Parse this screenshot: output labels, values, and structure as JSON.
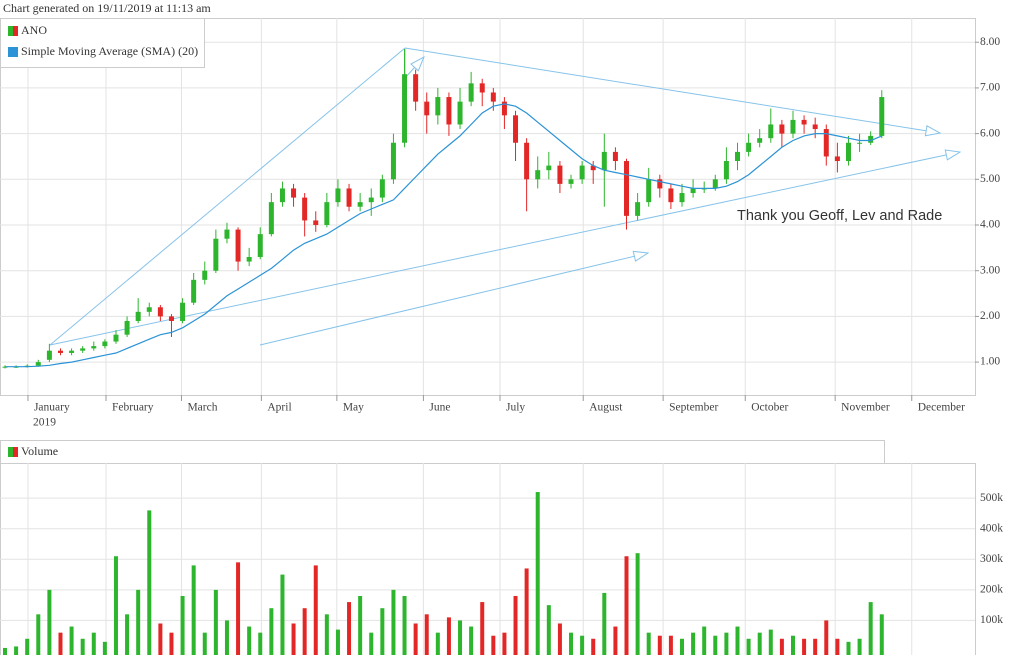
{
  "chart_data": [
    {
      "type": "candlestick",
      "title": "Chart generated on 19/11/2019 at 11:13 am",
      "annotation": "Thank you Geoff, Lev and Rade",
      "year_label": "2019",
      "grid": true,
      "up_color": "#2db52d",
      "down_color": "#e32727",
      "xlim": [
        -0.45,
        87.4
      ],
      "xticks": [
        {
          "value": 2.07,
          "label": "January"
        },
        {
          "value": 9.1,
          "label": "February"
        },
        {
          "value": 15.9,
          "label": "March"
        },
        {
          "value": 23.1,
          "label": "April"
        },
        {
          "value": 29.9,
          "label": "May"
        },
        {
          "value": 37.7,
          "label": "June"
        },
        {
          "value": 44.6,
          "label": "July"
        },
        {
          "value": 52.1,
          "label": "August"
        },
        {
          "value": 59.3,
          "label": "September"
        },
        {
          "value": 66.7,
          "label": "October"
        },
        {
          "value": 74.8,
          "label": "November"
        },
        {
          "value": 81.7,
          "label": "December"
        }
      ],
      "ylim": [
        0.28,
        8.53
      ],
      "yticks": [
        {
          "value": 1,
          "label": "1.00"
        },
        {
          "value": 2,
          "label": "2.00"
        },
        {
          "value": 3,
          "label": "3.00"
        },
        {
          "value": 4,
          "label": "4.00"
        },
        {
          "value": 5,
          "label": "5.00"
        },
        {
          "value": 6,
          "label": "6.00"
        },
        {
          "value": 7,
          "label": "7.00"
        },
        {
          "value": 8,
          "label": "8.00"
        }
      ],
      "series": [
        {
          "name": "ANO",
          "open": [
            0.88,
            0.9,
            0.9,
            0.92,
            1.05,
            1.25,
            1.2,
            1.25,
            1.3,
            1.35,
            1.45,
            1.6,
            1.9,
            2.1,
            2.2,
            2.0,
            1.9,
            2.3,
            2.8,
            3.0,
            3.7,
            3.9,
            3.2,
            3.3,
            3.8,
            4.5,
            4.8,
            4.6,
            4.1,
            4.0,
            4.5,
            4.8,
            4.4,
            4.5,
            4.6,
            5.0,
            5.8,
            7.3,
            6.7,
            6.4,
            6.8,
            6.2,
            6.7,
            7.1,
            6.9,
            6.7,
            6.4,
            5.8,
            5.0,
            5.2,
            5.3,
            4.9,
            5.0,
            5.3,
            5.2,
            5.6,
            5.4,
            4.2,
            4.5,
            5.0,
            4.8,
            4.5,
            4.7,
            4.8,
            4.8,
            5.0,
            5.4,
            5.6,
            5.8,
            5.9,
            6.2,
            6.0,
            6.3,
            6.2,
            6.1,
            5.5,
            5.4,
            5.8,
            5.8,
            5.95
          ],
          "high": [
            0.93,
            0.93,
            0.95,
            1.05,
            1.4,
            1.3,
            1.3,
            1.35,
            1.45,
            1.5,
            1.7,
            2.0,
            2.4,
            2.3,
            2.25,
            2.05,
            2.4,
            2.95,
            3.2,
            3.9,
            4.05,
            3.95,
            3.5,
            3.95,
            4.7,
            4.95,
            4.9,
            4.7,
            4.3,
            4.7,
            5.0,
            4.9,
            4.7,
            4.8,
            5.1,
            6.0,
            7.85,
            7.4,
            6.9,
            7.0,
            6.9,
            7.0,
            7.35,
            7.2,
            7.0,
            6.8,
            6.5,
            5.9,
            5.5,
            5.6,
            5.4,
            5.1,
            5.4,
            5.4,
            6.0,
            5.7,
            5.45,
            4.7,
            5.25,
            5.1,
            4.9,
            4.9,
            5.0,
            4.95,
            5.1,
            5.7,
            5.8,
            6.0,
            6.1,
            6.55,
            6.3,
            6.5,
            6.4,
            6.35,
            6.2,
            5.8,
            5.95,
            6.0,
            6.05,
            6.95
          ],
          "low": [
            0.86,
            0.87,
            0.88,
            0.9,
            1.0,
            1.15,
            1.15,
            1.2,
            1.25,
            1.3,
            1.4,
            1.55,
            1.85,
            2.0,
            1.9,
            1.55,
            1.85,
            2.25,
            2.7,
            2.95,
            3.6,
            3.0,
            3.1,
            3.25,
            3.75,
            4.4,
            4.4,
            3.75,
            3.85,
            3.95,
            4.4,
            4.3,
            4.3,
            4.2,
            4.5,
            4.9,
            5.7,
            6.5,
            6.0,
            6.2,
            5.95,
            6.1,
            6.6,
            6.6,
            6.5,
            6.1,
            5.4,
            4.3,
            4.8,
            5.0,
            4.7,
            4.8,
            4.9,
            4.9,
            4.4,
            5.2,
            3.9,
            4.1,
            4.4,
            4.6,
            4.35,
            4.4,
            4.6,
            4.7,
            4.75,
            4.9,
            5.2,
            5.5,
            5.7,
            5.8,
            5.7,
            5.9,
            6.0,
            5.9,
            5.3,
            5.15,
            5.3,
            5.6,
            5.75,
            5.9
          ],
          "close": [
            0.9,
            0.9,
            0.92,
            1.0,
            1.25,
            1.2,
            1.25,
            1.3,
            1.35,
            1.45,
            1.6,
            1.9,
            2.1,
            2.2,
            2.0,
            1.9,
            2.3,
            2.8,
            3.0,
            3.7,
            3.9,
            3.2,
            3.3,
            3.8,
            4.5,
            4.8,
            4.6,
            4.1,
            4.0,
            4.5,
            4.8,
            4.4,
            4.5,
            4.6,
            5.0,
            5.8,
            7.3,
            6.7,
            6.4,
            6.8,
            6.2,
            6.7,
            7.1,
            6.9,
            6.7,
            6.4,
            5.8,
            5.0,
            5.2,
            5.3,
            4.9,
            5.0,
            5.3,
            5.2,
            5.6,
            5.4,
            4.2,
            4.5,
            5.0,
            4.8,
            4.5,
            4.7,
            4.8,
            4.8,
            5.0,
            5.4,
            5.6,
            5.8,
            5.9,
            6.2,
            6.0,
            6.3,
            6.2,
            6.1,
            5.5,
            5.4,
            5.8,
            5.8,
            5.95,
            6.8
          ]
        },
        {
          "name": "Simple Moving Average (SMA) (20)",
          "color": "#2b93d6",
          "values": [
            0.9,
            0.9,
            0.9,
            0.91,
            0.93,
            0.97,
            1.0,
            1.05,
            1.1,
            1.15,
            1.2,
            1.3,
            1.4,
            1.5,
            1.6,
            1.65,
            1.75,
            1.9,
            2.05,
            2.25,
            2.45,
            2.6,
            2.75,
            2.9,
            3.05,
            3.25,
            3.45,
            3.6,
            3.7,
            3.8,
            3.95,
            4.1,
            4.25,
            4.35,
            4.45,
            4.55,
            4.8,
            5.05,
            5.3,
            5.55,
            5.75,
            5.95,
            6.2,
            6.45,
            6.6,
            6.65,
            6.6,
            6.45,
            6.25,
            6.05,
            5.85,
            5.65,
            5.45,
            5.3,
            5.2,
            5.15,
            5.1,
            5.05,
            5.0,
            4.95,
            4.9,
            4.85,
            4.8,
            4.8,
            4.8,
            4.85,
            4.95,
            5.1,
            5.3,
            5.5,
            5.7,
            5.85,
            5.95,
            6.0,
            6.0,
            5.95,
            5.9,
            5.85,
            5.85,
            5.95
          ]
        }
      ]
    },
    {
      "type": "bar",
      "grid": true,
      "xlim": [
        -0.45,
        87.4
      ],
      "ylim": [
        0,
        615000
      ],
      "yticks": [
        {
          "value": 100000,
          "label": "100k"
        },
        {
          "value": 200000,
          "label": "200k"
        },
        {
          "value": 300000,
          "label": "300k"
        },
        {
          "value": 400000,
          "label": "400k"
        },
        {
          "value": 500000,
          "label": "500k"
        }
      ],
      "series": [
        {
          "name": "Volume",
          "values": [
            10000,
            15000,
            40000,
            120000,
            200000,
            60000,
            80000,
            40000,
            60000,
            30000,
            310000,
            120000,
            200000,
            460000,
            90000,
            60000,
            180000,
            280000,
            60000,
            200000,
            100000,
            290000,
            80000,
            60000,
            140000,
            250000,
            90000,
            140000,
            280000,
            120000,
            70000,
            160000,
            180000,
            60000,
            140000,
            200000,
            180000,
            90000,
            120000,
            60000,
            110000,
            100000,
            80000,
            160000,
            50000,
            60000,
            180000,
            270000,
            520000,
            150000,
            90000,
            60000,
            50000,
            40000,
            190000,
            80000,
            310000,
            320000,
            60000,
            50000,
            50000,
            40000,
            60000,
            80000,
            50000,
            60000,
            80000,
            40000,
            60000,
            70000,
            40000,
            50000,
            40000,
            40000,
            100000,
            40000,
            30000,
            40000,
            160000,
            120000
          ]
        }
      ]
    }
  ]
}
